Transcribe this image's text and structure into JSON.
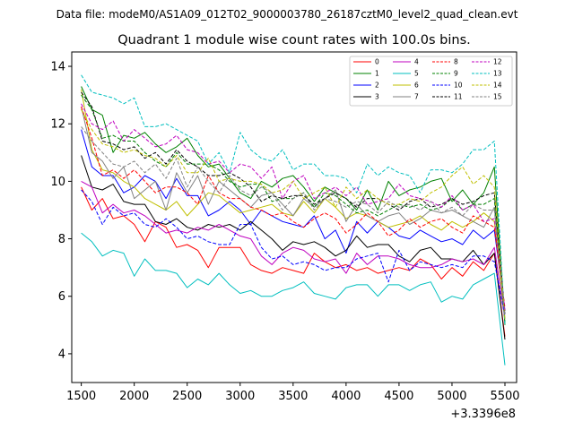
{
  "figure": {
    "suptitle": "Data file: modeM0/AS1A09_012T02_9000003780_26187cztM0_level2_quad_clean.evt",
    "title": "Quadrant 1 module wise count rates with 100.0s bins.",
    "offset_label": "+3.3396e8"
  },
  "chart_data": {
    "type": "line",
    "title": "Quadrant 1 module wise count rates with 100.0s bins.",
    "xlabel": "",
    "ylabel": "",
    "x_offset": 333960000,
    "xlim": [
      1410,
      5610
    ],
    "ylim": [
      3.0,
      14.5
    ],
    "xticks": [
      1500,
      2000,
      2500,
      3000,
      3500,
      4000,
      4500,
      5000,
      5500
    ],
    "xtick_labels": [
      "1500",
      "2000",
      "2500",
      "3000",
      "3500",
      "4000",
      "4500",
      "5000",
      "5500"
    ],
    "yticks": [
      4,
      6,
      8,
      10,
      12,
      14
    ],
    "ytick_labels": [
      "4",
      "6",
      "8",
      "10",
      "12",
      "14"
    ],
    "legend_position": "top-right",
    "x": [
      1500,
      1600,
      1700,
      1800,
      1900,
      2000,
      2100,
      2200,
      2300,
      2400,
      2500,
      2600,
      2700,
      2800,
      2900,
      3000,
      3100,
      3200,
      3300,
      3400,
      3500,
      3600,
      3700,
      3800,
      3900,
      4000,
      4100,
      4200,
      4300,
      4400,
      4500,
      4600,
      4700,
      4800,
      4900,
      5000,
      5100,
      5200,
      5300,
      5400,
      5500
    ],
    "series": [
      {
        "name": "0",
        "color": "#ff0000",
        "dash": "solid",
        "values": [
          9.8,
          9.0,
          9.4,
          8.7,
          8.8,
          8.5,
          7.9,
          8.6,
          8.4,
          7.7,
          7.8,
          7.6,
          7.0,
          7.7,
          7.7,
          7.7,
          7.1,
          6.9,
          6.8,
          7.0,
          6.9,
          6.8,
          7.5,
          7.2,
          7.0,
          7.1,
          6.9,
          7.0,
          6.8,
          6.9,
          7.0,
          6.9,
          7.3,
          7.1,
          6.6,
          7.0,
          6.7,
          7.2,
          6.9,
          7.5,
          4.6
        ]
      },
      {
        "name": "1",
        "color": "#008000",
        "dash": "solid",
        "values": [
          13.3,
          12.5,
          12.3,
          11.0,
          11.6,
          11.5,
          11.7,
          11.3,
          11.0,
          11.2,
          11.5,
          10.9,
          10.5,
          10.6,
          10.1,
          9.6,
          9.4,
          10.0,
          9.8,
          10.1,
          10.2,
          9.8,
          9.3,
          9.8,
          9.6,
          9.4,
          9.0,
          9.7,
          9.0,
          10.0,
          9.5,
          9.7,
          9.8,
          10.0,
          10.1,
          9.3,
          9.7,
          9.2,
          9.6,
          10.5,
          5.0
        ]
      },
      {
        "name": "2",
        "color": "#0000ff",
        "dash": "solid",
        "values": [
          11.8,
          10.5,
          10.2,
          10.2,
          9.6,
          9.8,
          10.2,
          10.0,
          9.4,
          10.1,
          9.5,
          9.5,
          8.8,
          9.0,
          9.3,
          9.0,
          8.5,
          9.0,
          8.8,
          8.6,
          8.5,
          8.4,
          8.8,
          8.0,
          8.3,
          7.5,
          8.6,
          8.2,
          8.6,
          8.4,
          8.1,
          8.0,
          8.3,
          8.1,
          7.9,
          8.0,
          7.8,
          8.3,
          8.0,
          8.3,
          5.5
        ]
      },
      {
        "name": "3",
        "color": "#000000",
        "dash": "solid",
        "values": [
          10.9,
          9.8,
          9.7,
          9.9,
          9.3,
          9.2,
          9.2,
          8.6,
          8.5,
          8.7,
          8.4,
          8.3,
          8.5,
          8.4,
          8.5,
          8.3,
          8.6,
          8.3,
          8.0,
          7.6,
          7.9,
          7.8,
          7.9,
          7.7,
          7.4,
          7.6,
          8.1,
          7.7,
          7.8,
          7.8,
          7.4,
          7.2,
          7.6,
          7.7,
          7.3,
          7.3,
          7.2,
          7.6,
          7.1,
          7.5,
          4.5
        ]
      },
      {
        "name": "4",
        "color": "#bf00bf",
        "dash": "solid",
        "values": [
          10.0,
          9.8,
          8.9,
          9.2,
          8.9,
          9.0,
          8.8,
          8.5,
          8.2,
          8.3,
          8.2,
          8.4,
          8.3,
          8.5,
          8.3,
          8.1,
          8.0,
          7.4,
          7.1,
          7.5,
          7.7,
          7.6,
          7.3,
          7.2,
          7.3,
          6.8,
          7.5,
          7.1,
          7.4,
          7.4,
          7.3,
          7.1,
          7.0,
          7.0,
          7.1,
          7.3,
          7.2,
          7.3,
          7.1,
          7.7,
          5.2
        ]
      },
      {
        "name": "5",
        "color": "#00bfbf",
        "dash": "solid",
        "values": [
          8.2,
          7.9,
          7.4,
          7.6,
          7.5,
          6.7,
          7.3,
          6.9,
          6.9,
          6.8,
          6.3,
          6.6,
          6.4,
          6.8,
          6.4,
          6.1,
          6.2,
          6.0,
          6.0,
          6.2,
          6.3,
          6.5,
          6.1,
          6.0,
          5.9,
          6.3,
          6.4,
          6.4,
          6.0,
          6.4,
          6.4,
          6.2,
          6.4,
          6.5,
          5.8,
          6.0,
          5.9,
          6.4,
          6.6,
          6.8,
          3.6
        ]
      },
      {
        "name": "6",
        "color": "#bfbf00",
        "dash": "solid",
        "values": [
          13.2,
          11.1,
          10.4,
          10.3,
          10.0,
          9.8,
          9.4,
          9.2,
          9.0,
          9.3,
          8.8,
          9.2,
          9.6,
          9.5,
          9.2,
          8.9,
          9.0,
          9.1,
          9.2,
          8.9,
          8.8,
          9.3,
          8.9,
          9.4,
          9.1,
          8.7,
          8.9,
          8.8,
          8.6,
          8.4,
          8.5,
          8.6,
          8.8,
          8.5,
          8.3,
          8.6,
          8.4,
          8.6,
          8.9,
          8.6,
          5.2
        ]
      },
      {
        "name": "7",
        "color": "#808080",
        "dash": "solid",
        "values": [
          12.6,
          11.0,
          10.7,
          10.1,
          10.5,
          9.4,
          9.7,
          10.0,
          9.0,
          10.3,
          9.6,
          10.2,
          9.2,
          10.0,
          9.7,
          9.4,
          9.1,
          9.5,
          9.6,
          9.2,
          8.8,
          9.4,
          9.1,
          9.4,
          9.7,
          8.6,
          9.2,
          8.8,
          8.6,
          8.8,
          8.9,
          8.5,
          8.7,
          9.0,
          8.9,
          9.0,
          8.8,
          8.6,
          8.4,
          9.1,
          5.4
        ]
      },
      {
        "name": "8",
        "color": "#ff0000",
        "dash": "dashed",
        "values": [
          12.6,
          11.5,
          10.2,
          10.4,
          10.1,
          10.4,
          10.0,
          9.6,
          9.8,
          9.8,
          9.6,
          9.2,
          10.2,
          9.6,
          9.4,
          9.4,
          9.1,
          9.0,
          8.8,
          8.9,
          8.6,
          8.4,
          8.7,
          8.9,
          8.7,
          8.2,
          8.5,
          8.9,
          8.6,
          8.1,
          8.3,
          8.7,
          8.4,
          8.6,
          8.7,
          8.4,
          8.2,
          8.8,
          8.6,
          8.4,
          5.6
        ]
      },
      {
        "name": "9",
        "color": "#008000",
        "dash": "dashed",
        "values": [
          13.0,
          12.5,
          11.5,
          11.6,
          11.4,
          11.4,
          11.0,
          10.7,
          10.5,
          11.0,
          10.6,
          10.6,
          10.6,
          10.4,
          10.0,
          9.8,
          9.9,
          9.9,
          9.3,
          9.4,
          9.4,
          9.6,
          9.1,
          9.6,
          9.5,
          9.2,
          8.9,
          9.0,
          8.8,
          9.0,
          9.2,
          9.1,
          9.2,
          9.0,
          9.1,
          9.4,
          9.0,
          9.2,
          9.2,
          9.4,
          5.1
        ]
      },
      {
        "name": "10",
        "color": "#0000ff",
        "dash": "dashed",
        "values": [
          9.7,
          9.3,
          8.5,
          9.1,
          8.8,
          8.9,
          8.5,
          8.4,
          8.7,
          8.4,
          8.0,
          8.1,
          7.9,
          7.8,
          7.8,
          8.5,
          8.5,
          7.7,
          7.3,
          7.4,
          7.1,
          7.2,
          7.1,
          6.9,
          7.0,
          7.0,
          7.3,
          7.4,
          7.5,
          6.5,
          7.6,
          6.9,
          7.2,
          7.1,
          7.0,
          7.1,
          7.0,
          7.4,
          7.4,
          7.2,
          5.3
        ]
      },
      {
        "name": "11",
        "color": "#000000",
        "dash": "dashed",
        "values": [
          13.1,
          12.6,
          11.4,
          11.3,
          11.1,
          11.2,
          10.8,
          11.0,
          10.6,
          11.1,
          10.7,
          10.5,
          10.2,
          10.2,
          10.3,
          10.1,
          9.8,
          9.3,
          9.5,
          9.4,
          9.5,
          9.5,
          9.2,
          9.4,
          9.6,
          9.4,
          9.1,
          9.4,
          9.4,
          9.2,
          9.0,
          9.3,
          9.4,
          9.1,
          9.2,
          9.4,
          9.2,
          9.3,
          9.5,
          9.6,
          5.4
        ]
      },
      {
        "name": "12",
        "color": "#bf00bf",
        "dash": "dashed",
        "values": [
          12.7,
          12.0,
          11.8,
          12.1,
          11.4,
          11.8,
          11.5,
          11.2,
          11.3,
          11.6,
          11.1,
          11.0,
          10.6,
          10.7,
          10.3,
          10.6,
          10.5,
          10.1,
          10.5,
          9.4,
          10.0,
          10.2,
          9.4,
          9.6,
          9.8,
          9.5,
          9.8,
          9.2,
          9.3,
          9.4,
          9.9,
          9.5,
          9.4,
          9.3,
          9.1,
          9.5,
          9.0,
          9.2,
          8.6,
          8.7,
          5.5
        ]
      },
      {
        "name": "13",
        "color": "#00bfbf",
        "dash": "dashed",
        "values": [
          13.7,
          13.1,
          13.0,
          12.9,
          12.7,
          12.9,
          11.9,
          11.9,
          12.0,
          11.8,
          11.6,
          11.4,
          10.6,
          11.0,
          10.3,
          11.7,
          11.1,
          10.8,
          10.7,
          11.1,
          10.4,
          10.6,
          10.6,
          10.2,
          10.2,
          10.1,
          9.6,
          10.6,
          10.2,
          10.5,
          10.3,
          10.2,
          9.6,
          10.4,
          10.4,
          10.3,
          10.6,
          11.1,
          11.1,
          11.4,
          5.0
        ]
      },
      {
        "name": "14",
        "color": "#bfbf00",
        "dash": "dashed",
        "values": [
          12.5,
          11.8,
          11.3,
          11.2,
          11.0,
          11.1,
          10.9,
          10.8,
          10.5,
          10.9,
          10.3,
          10.3,
          10.8,
          10.0,
          10.1,
          10.0,
          10.0,
          9.9,
          9.6,
          9.7,
          10.0,
          9.4,
          9.6,
          9.8,
          9.1,
          9.8,
          9.4,
          9.7,
          9.4,
          9.2,
          9.2,
          9.4,
          9.3,
          9.6,
          9.8,
          10.2,
          10.5,
          9.9,
          10.2,
          9.8,
          5.2
        ]
      },
      {
        "name": "15",
        "color": "#808080",
        "dash": "dashed",
        "values": [
          11.9,
          11.4,
          11.0,
          10.6,
          10.5,
          10.7,
          10.3,
          10.6,
          10.1,
          10.8,
          9.8,
          10.5,
          10.0,
          9.6,
          10.2,
          9.7,
          9.5,
          9.8,
          9.6,
          9.0,
          9.4,
          9.6,
          9.0,
          9.4,
          9.3,
          9.1,
          9.3,
          9.2,
          8.9,
          9.3,
          9.1,
          9.2,
          9.0,
          9.3,
          8.9,
          9.1,
          8.8,
          9.2,
          9.0,
          9.0,
          5.3
        ]
      }
    ]
  }
}
